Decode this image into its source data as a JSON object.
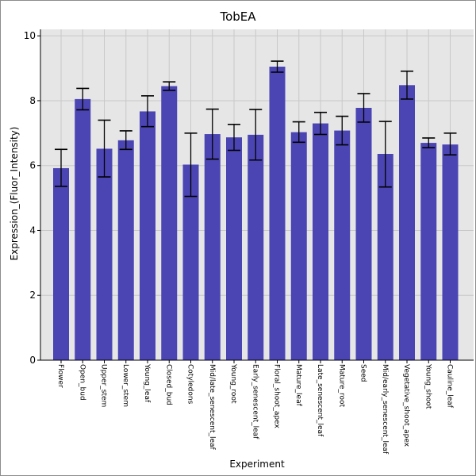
{
  "chart_data": {
    "type": "bar",
    "title": "TobEA",
    "xlabel": "Experiment",
    "ylabel": "Expression_(Fluor_Intensity)",
    "ylim": [
      0,
      10.2
    ],
    "yticks": [
      0,
      2,
      4,
      6,
      8,
      10
    ],
    "grid": true,
    "colors": {
      "bar": "#4b45b4",
      "plot_bg": "#e6e6e6",
      "grid": "#c8c8c8"
    },
    "categories": [
      "Flower",
      "Open_bud",
      "Upper_stem",
      "Lower_stem",
      "Young_leaf",
      "Closed_bud",
      "Cotyledons",
      "Mid/late_senescent_leaf",
      "Young_root",
      "Early_senescent_leaf",
      "Floral_shoot_apex",
      "Mature_leaf",
      "Late_senescent_leaf",
      "Mature_root",
      "Seed",
      "Mid/early_senescent_leaf",
      "Vegetative_shoot_apex",
      "Young_shoot",
      "Cauline_leaf"
    ],
    "values": [
      5.92,
      8.05,
      6.52,
      6.78,
      7.67,
      8.45,
      6.03,
      6.97,
      6.87,
      6.95,
      9.05,
      7.03,
      7.3,
      7.08,
      7.78,
      6.36,
      8.48,
      6.7,
      6.65
    ],
    "error_low": [
      5.36,
      7.72,
      5.65,
      6.5,
      7.2,
      8.32,
      5.05,
      6.2,
      6.47,
      6.17,
      8.88,
      6.72,
      6.96,
      6.64,
      7.34,
      5.34,
      8.05,
      6.55,
      6.33
    ],
    "error_high": [
      6.5,
      8.38,
      7.4,
      7.07,
      8.15,
      8.58,
      7.0,
      7.74,
      7.27,
      7.73,
      9.22,
      7.35,
      7.64,
      7.52,
      8.22,
      7.36,
      8.91,
      6.85,
      7.0
    ]
  }
}
